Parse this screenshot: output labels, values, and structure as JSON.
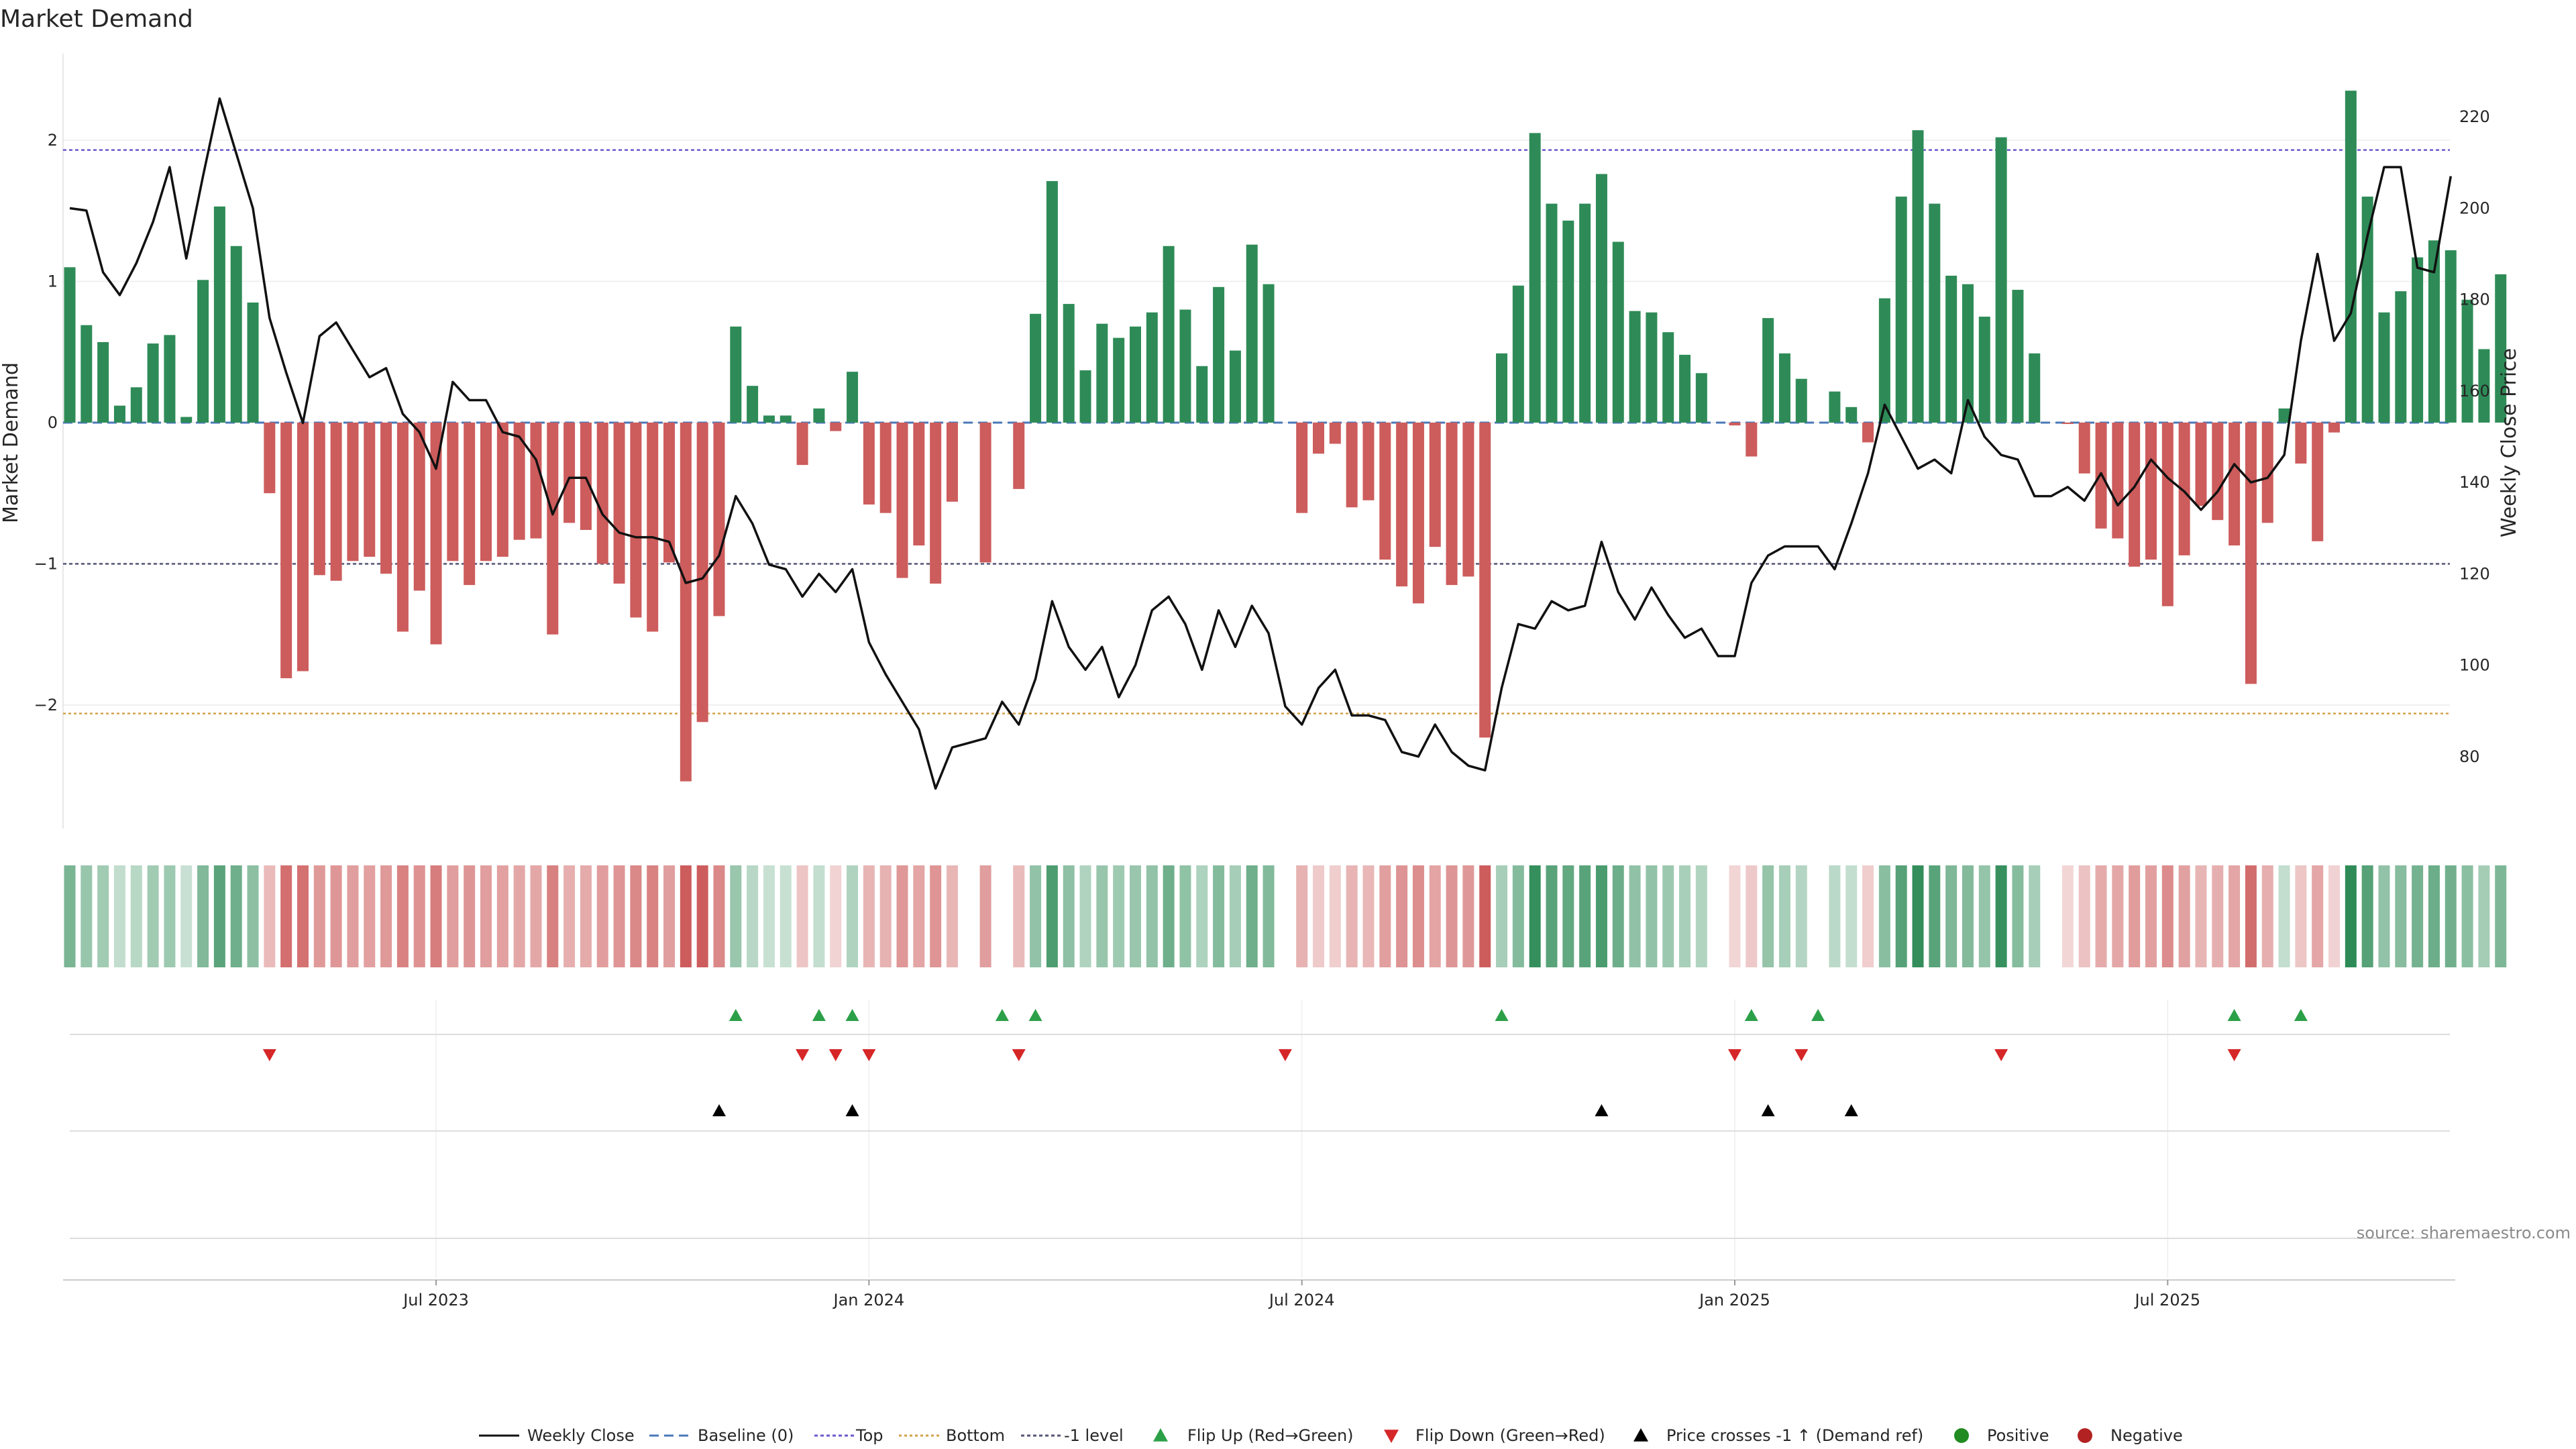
{
  "chart_data": {
    "type": "bar",
    "title": "Market Demand",
    "ylabel_left": "Market Demand",
    "ylabel_right": "Weekly Close Price",
    "ylim_left": [
      -2.85,
      2.65
    ],
    "ylim_right": [
      65,
      235
    ],
    "yticks_left": [
      {
        "v": 2,
        "label": "2"
      },
      {
        "v": 1,
        "label": "1"
      },
      {
        "v": 0,
        "label": "0"
      },
      {
        "v": -1,
        "label": "−1"
      },
      {
        "v": -2,
        "label": "−2"
      }
    ],
    "yticks_right": [
      {
        "v": 220,
        "label": "220"
      },
      {
        "v": 200,
        "label": "200"
      },
      {
        "v": 180,
        "label": "180"
      },
      {
        "v": 160,
        "label": "160"
      },
      {
        "v": 140,
        "label": "140"
      },
      {
        "v": 120,
        "label": "120"
      },
      {
        "v": 100,
        "label": "100"
      },
      {
        "v": 80,
        "label": "80"
      }
    ],
    "xticks": [
      {
        "i": 22,
        "label": "Jul 2023"
      },
      {
        "i": 48,
        "label": "Jan 2024"
      },
      {
        "i": 74,
        "label": "Jul 2024"
      },
      {
        "i": 100,
        "label": "Jan 2025"
      },
      {
        "i": 126,
        "label": "Jul 2025"
      }
    ],
    "reference_lines": [
      {
        "name": "Top",
        "value": 1.93,
        "color": "#6a5acd"
      },
      {
        "name": "Bottom",
        "value": -2.06,
        "color": "#d4a04a"
      },
      {
        "name": "-1 level",
        "value": -1.0,
        "color": "#555577"
      },
      {
        "name": "Baseline (0)",
        "value": 0,
        "color": "#4a78b8"
      }
    ],
    "demand": [
      1.1,
      0.69,
      0.57,
      0.12,
      0.25,
      0.56,
      0.62,
      0.04,
      1.01,
      1.53,
      1.25,
      0.85,
      -0.5,
      -1.81,
      -1.76,
      -1.08,
      -1.12,
      -0.98,
      -0.95,
      -1.07,
      -1.48,
      -1.19,
      -1.57,
      -0.98,
      -1.15,
      -0.98,
      -0.95,
      -0.83,
      -0.82,
      -1.5,
      -0.71,
      -0.76,
      -1.0,
      -1.14,
      -1.38,
      -1.48,
      -0.99,
      -2.54,
      -2.12,
      -1.37,
      0.68,
      0.26,
      0.05,
      0.05,
      -0.3,
      0.1,
      -0.06,
      0.36,
      -0.58,
      -0.64,
      -1.1,
      -0.87,
      -1.14,
      -0.56,
      0,
      -0.99,
      0,
      -0.47,
      0.77,
      1.71,
      0.84,
      0.37,
      0.7,
      0.6,
      0.68,
      0.78,
      1.25,
      0.8,
      0.4,
      0.96,
      0.51,
      1.26,
      0.98,
      0,
      -0.64,
      -0.22,
      -0.15,
      -0.6,
      -0.55,
      -0.97,
      -1.16,
      -1.28,
      -0.88,
      -1.15,
      -1.09,
      -2.23,
      0.49,
      0.97,
      2.05,
      1.55,
      1.43,
      1.55,
      1.76,
      1.28,
      0.79,
      0.78,
      0.64,
      0.48,
      0.35,
      0,
      -0.02,
      -0.24,
      0.74,
      0.49,
      0.31,
      0,
      0.22,
      0.11,
      -0.14,
      0.88,
      1.6,
      2.07,
      1.55,
      1.04,
      0.98,
      0.75,
      2.02,
      0.94,
      0.49,
      0,
      -0.01,
      -0.36,
      -0.75,
      -0.82,
      -1.02,
      -0.97,
      -1.3,
      -0.94,
      -0.59,
      -0.69,
      -0.87,
      -1.85,
      -0.71,
      0.1,
      -0.29,
      -0.84,
      -0.07,
      2.35,
      1.6,
      0.78,
      0.93,
      1.17,
      1.29,
      1.22,
      0.87,
      0.52,
      1.05
    ],
    "price_series": [
      {
        "i": 0,
        "v": 200
      },
      {
        "i": 1,
        "v": 199.5
      },
      {
        "i": 2,
        "v": 186
      },
      {
        "i": 3,
        "v": 181
      },
      {
        "i": 4,
        "v": 188
      },
      {
        "i": 5,
        "v": 197
      },
      {
        "i": 6,
        "v": 209
      },
      {
        "i": 7,
        "v": 189
      },
      {
        "i": 8,
        "v": 207
      },
      {
        "i": 9,
        "v": 224
      },
      {
        "i": 10,
        "v": 212
      },
      {
        "i": 11,
        "v": 200
      },
      {
        "i": 12,
        "v": 176
      },
      {
        "i": 13,
        "v": 164
      },
      {
        "i": 14,
        "v": 153
      },
      {
        "i": 15,
        "v": 172
      },
      {
        "i": 16,
        "v": 175
      },
      {
        "i": 17,
        "v": 169
      },
      {
        "i": 18,
        "v": 163
      },
      {
        "i": 19,
        "v": 165
      },
      {
        "i": 20,
        "v": 155
      },
      {
        "i": 21,
        "v": 151
      },
      {
        "i": 22,
        "v": 143
      },
      {
        "i": 23,
        "v": 162
      },
      {
        "i": 24,
        "v": 158
      },
      {
        "i": 25,
        "v": 158
      },
      {
        "i": 26,
        "v": 151
      },
      {
        "i": 27,
        "v": 150
      },
      {
        "i": 28,
        "v": 145
      },
      {
        "i": 29,
        "v": 133
      },
      {
        "i": 30,
        "v": 141
      },
      {
        "i": 31,
        "v": 141
      },
      {
        "i": 32,
        "v": 133
      },
      {
        "i": 33,
        "v": 129
      },
      {
        "i": 34,
        "v": 128
      },
      {
        "i": 35,
        "v": 128
      },
      {
        "i": 36,
        "v": 127
      },
      {
        "i": 37,
        "v": 118
      },
      {
        "i": 38,
        "v": 119
      },
      {
        "i": 39,
        "v": 124
      },
      {
        "i": 40,
        "v": 137
      },
      {
        "i": 41,
        "v": 131
      },
      {
        "i": 42,
        "v": 122
      },
      {
        "i": 43,
        "v": 121
      },
      {
        "i": 44,
        "v": 115
      },
      {
        "i": 45,
        "v": 120
      },
      {
        "i": 46,
        "v": 116
      },
      {
        "i": 47,
        "v": 121
      },
      {
        "i": 48,
        "v": 105
      },
      {
        "i": 49,
        "v": 98
      },
      {
        "i": 50,
        "v": 92
      },
      {
        "i": 51,
        "v": 86
      },
      {
        "i": 52,
        "v": 73
      },
      {
        "i": 53,
        "v": 82
      },
      {
        "i": 54,
        "v": 83
      },
      {
        "i": 55,
        "v": 84
      },
      {
        "i": 56,
        "v": 92
      },
      {
        "i": 57,
        "v": 87
      },
      {
        "i": 58,
        "v": 97
      },
      {
        "i": 59,
        "v": 114
      },
      {
        "i": 60,
        "v": 104
      },
      {
        "i": 61,
        "v": 99
      },
      {
        "i": 62,
        "v": 104
      },
      {
        "i": 63,
        "v": 93
      },
      {
        "i": 64,
        "v": 100
      },
      {
        "i": 65,
        "v": 112
      },
      {
        "i": 66,
        "v": 115
      },
      {
        "i": 67,
        "v": 109
      },
      {
        "i": 68,
        "v": 99
      },
      {
        "i": 69,
        "v": 112
      },
      {
        "i": 70,
        "v": 104
      },
      {
        "i": 71,
        "v": 113
      },
      {
        "i": 72,
        "v": 107
      },
      {
        "i": 73,
        "v": 91
      },
      {
        "i": 74,
        "v": 87
      },
      {
        "i": 75,
        "v": 95
      },
      {
        "i": 76,
        "v": 99
      },
      {
        "i": 77,
        "v": 89
      },
      {
        "i": 78,
        "v": 89
      },
      {
        "i": 79,
        "v": 88
      },
      {
        "i": 80,
        "v": 81
      },
      {
        "i": 81,
        "v": 80
      },
      {
        "i": 82,
        "v": 87
      },
      {
        "i": 83,
        "v": 81
      },
      {
        "i": 84,
        "v": 78
      },
      {
        "i": 85,
        "v": 77
      },
      {
        "i": 86,
        "v": 95
      },
      {
        "i": 87,
        "v": 109
      },
      {
        "i": 88,
        "v": 108
      },
      {
        "i": 89,
        "v": 114
      },
      {
        "i": 90,
        "v": 112
      },
      {
        "i": 91,
        "v": 113
      },
      {
        "i": 92,
        "v": 127
      },
      {
        "i": 93,
        "v": 116
      },
      {
        "i": 94,
        "v": 110
      },
      {
        "i": 95,
        "v": 117
      },
      {
        "i": 96,
        "v": 111
      },
      {
        "i": 97,
        "v": 106
      },
      {
        "i": 98,
        "v": 108
      },
      {
        "i": 99,
        "v": 102
      },
      {
        "i": 100,
        "v": 102
      },
      {
        "i": 101,
        "v": 118
      },
      {
        "i": 102,
        "v": 124
      },
      {
        "i": 103,
        "v": 126
      },
      {
        "i": 104,
        "v": 126
      },
      {
        "i": 105,
        "v": 126
      },
      {
        "i": 106,
        "v": 121
      },
      {
        "i": 107,
        "v": 131
      },
      {
        "i": 108,
        "v": 142
      },
      {
        "i": 109,
        "v": 157
      },
      {
        "i": 110,
        "v": 150
      },
      {
        "i": 111,
        "v": 143
      },
      {
        "i": 112,
        "v": 145
      },
      {
        "i": 113,
        "v": 142
      },
      {
        "i": 114,
        "v": 158
      },
      {
        "i": 115,
        "v": 150
      },
      {
        "i": 116,
        "v": 146
      },
      {
        "i": 117,
        "v": 145
      },
      {
        "i": 118,
        "v": 137
      },
      {
        "i": 119,
        "v": 137
      },
      {
        "i": 120,
        "v": 139
      },
      {
        "i": 121,
        "v": 136
      },
      {
        "i": 122,
        "v": 142
      },
      {
        "i": 123,
        "v": 135
      },
      {
        "i": 124,
        "v": 139
      },
      {
        "i": 125,
        "v": 145
      },
      {
        "i": 126,
        "v": 141
      },
      {
        "i": 127,
        "v": 138
      },
      {
        "i": 128,
        "v": 134
      },
      {
        "i": 129,
        "v": 138
      },
      {
        "i": 130,
        "v": 144
      },
      {
        "i": 131,
        "v": 140
      },
      {
        "i": 132,
        "v": 141
      },
      {
        "i": 133,
        "v": 146
      },
      {
        "i": 134,
        "v": 171
      },
      {
        "i": 135,
        "v": 190
      },
      {
        "i": 136,
        "v": 171
      },
      {
        "i": 137,
        "v": 177
      },
      {
        "i": 138,
        "v": 194
      },
      {
        "i": 139,
        "v": 209
      },
      {
        "i": 140,
        "v": 209
      },
      {
        "i": 141,
        "v": 187
      },
      {
        "i": 142,
        "v": 186
      },
      {
        "i": 143,
        "v": 207
      }
    ],
    "flip_up": [
      40,
      45,
      47,
      56,
      58,
      86,
      101,
      105,
      130,
      134
    ],
    "flip_down": [
      12,
      44,
      46,
      48,
      57,
      73,
      100,
      104,
      116,
      130
    ],
    "price_crosses": [
      39,
      47,
      92,
      102,
      107
    ],
    "legend": [
      {
        "key": "weekly_close",
        "label": "Weekly Close"
      },
      {
        "key": "baseline",
        "label": "Baseline (0)"
      },
      {
        "key": "top",
        "label": "Top"
      },
      {
        "key": "bottom",
        "label": "Bottom"
      },
      {
        "key": "minus1",
        "label": "-1 level"
      },
      {
        "key": "flip_up",
        "label": "Flip Up (Red→Green)"
      },
      {
        "key": "flip_down",
        "label": "Flip Down (Green→Red)"
      },
      {
        "key": "cross",
        "label": "Price crosses -1 ↑ (Demand ref)"
      },
      {
        "key": "positive",
        "label": "Positive"
      },
      {
        "key": "negative",
        "label": "Negative"
      }
    ]
  },
  "colors": {
    "positive": "#2e8b57",
    "negative": "#cd5c5c",
    "price_line": "#111111",
    "flip_up": "#2ca048",
    "flip_down": "#d62728",
    "cross": "#000000",
    "dot_positive": "#228b22",
    "dot_negative": "#b22222"
  },
  "source": "source: sharemaestro.com"
}
